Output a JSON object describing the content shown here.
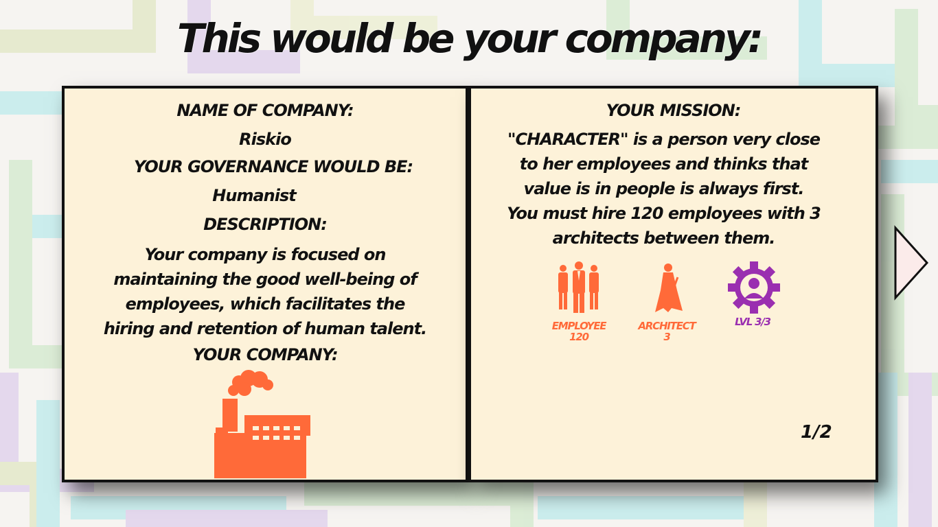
{
  "title": "This would be your company:",
  "left_panel": {
    "name_label": "NAME OF COMPANY:",
    "name_value": "Riskio",
    "governance_label": "YOUR GOVERNANCE WOULD BE:",
    "governance_value": "Humanist",
    "description_label": "DESCRIPTION:",
    "description_lines": [
      "Your company is focused on",
      "maintaining the good well-being of",
      "employees, which facilitates the",
      "hiring and retention of human talent."
    ],
    "company_label": "YOUR COMPANY:",
    "company_icon": "factory-icon"
  },
  "right_panel": {
    "mission_label": "YOUR MISSION:",
    "mission_lines": [
      "\"CHARACTER\" is a person very close",
      "to her employees and thinks that",
      "value is in people is always first.",
      "You must hire 120 employees with 3",
      "architects between them."
    ],
    "requirements": [
      {
        "icon": "employees-icon",
        "label": "EMPLOYEE",
        "value": "120"
      },
      {
        "icon": "architect-icon",
        "label": "ARCHITECT",
        "value": "3"
      },
      {
        "icon": "level-gear-icon",
        "label": "LVL 3/3"
      }
    ],
    "page": "1/2"
  },
  "colors": {
    "accent_orange": "#ff6a39",
    "accent_purple": "#9a2fb0",
    "panel_bg": "#fdf2d9",
    "border": "#111111"
  }
}
